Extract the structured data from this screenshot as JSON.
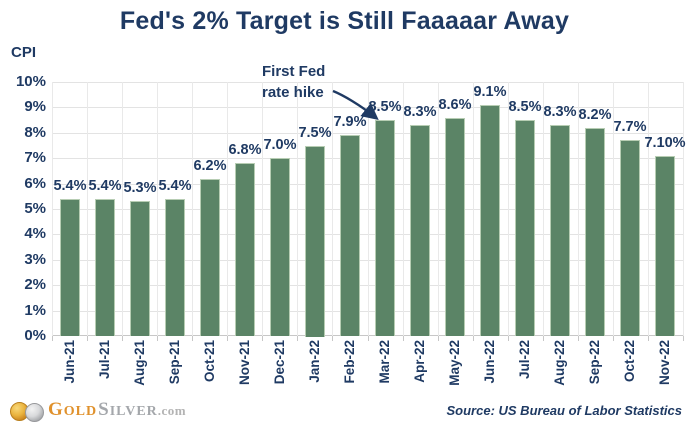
{
  "title": "Fed's 2% Target is Still Faaaaar Away",
  "source": "Source: US Bureau of Labor Statistics",
  "logo": {
    "gold": "GOLD",
    "silver": "SILVER",
    "tld": ".com",
    "icons": [
      "gold-coin-icon",
      "silver-coin-icon"
    ]
  },
  "chart_data": {
    "type": "bar",
    "title": "Fed's 2% Target is Still Faaaaar Away",
    "xlabel": "",
    "ylabel": "CPI",
    "ylim": [
      0,
      10
    ],
    "grid": true,
    "y_ticks": [
      "0%",
      "1%",
      "2%",
      "3%",
      "4%",
      "5%",
      "6%",
      "7%",
      "8%",
      "9%",
      "10%"
    ],
    "categories": [
      "Jun-21",
      "Jul-21",
      "Aug-21",
      "Sep-21",
      "Oct-21",
      "Nov-21",
      "Dec-21",
      "Jan-22",
      "Feb-22",
      "Mar-22",
      "Apr-22",
      "May-22",
      "Jun-22",
      "Jul-22",
      "Aug-22",
      "Sep-22",
      "Oct-22",
      "Nov-22"
    ],
    "values": [
      5.4,
      5.4,
      5.3,
      5.4,
      6.2,
      6.8,
      7.0,
      7.5,
      7.9,
      8.5,
      8.3,
      8.6,
      9.1,
      8.5,
      8.3,
      8.2,
      7.7,
      7.1
    ],
    "value_labels": [
      "5.4%",
      "5.4%",
      "5.3%",
      "5.4%",
      "6.2%",
      "6.8%",
      "7.0%",
      "7.5%",
      "7.9%",
      "8.5%",
      "8.3%",
      "8.6%",
      "9.1%",
      "8.5%",
      "8.3%",
      "8.2%",
      "7.7%",
      "7.10%"
    ],
    "annotation": "First Fed rate hike",
    "annotation_lines": [
      "First Fed",
      "rate hike"
    ],
    "annotation_target": "Mar-22",
    "colors": {
      "bar_fill": "#5b8466",
      "bar_border": "#b7cdb3",
      "text_navy": "#1f3a63",
      "gridline": "#e3e3e3",
      "logo_gold": "#e0912c",
      "logo_silver": "#a4a7ab"
    }
  }
}
